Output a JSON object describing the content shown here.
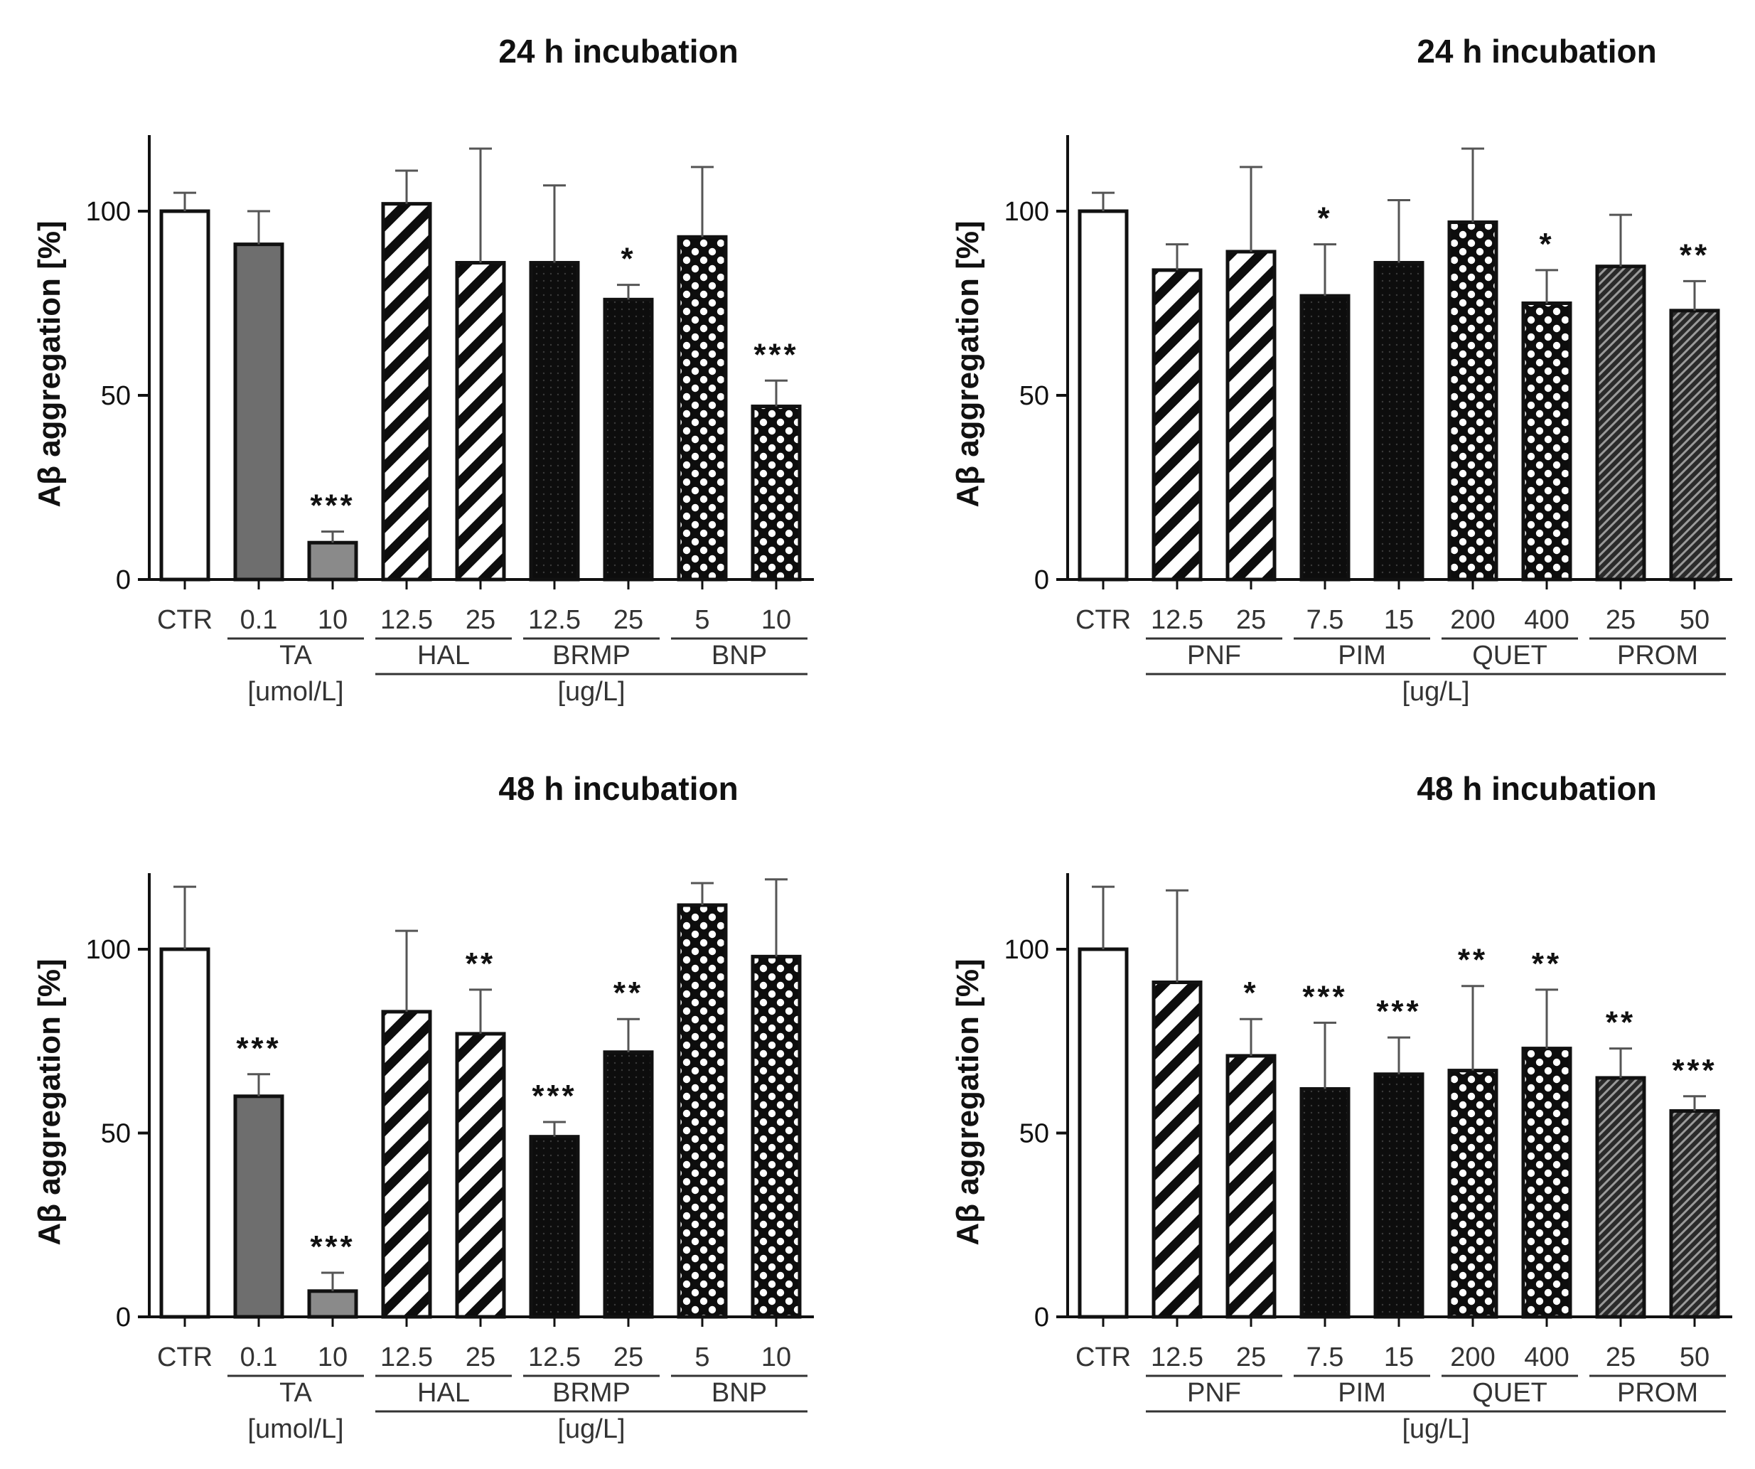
{
  "colors": {
    "ink": "#111111",
    "gray": "#6e6e6e",
    "lightgray": "#8a8a8a",
    "white": "#ffffff",
    "black": "#0d0d0d"
  },
  "chart_data": [
    {
      "id": "tl",
      "type": "bar",
      "title": "24 h incubation",
      "ylabel": "Aβ aggregation [%]",
      "ylim": [
        0,
        120
      ],
      "yticks": [
        0,
        50,
        100
      ],
      "categories": [
        "CTR",
        "0.1",
        "10",
        "12.5",
        "25",
        "12.5",
        "25",
        "5",
        "10"
      ],
      "values": [
        100,
        91,
        10,
        102,
        86,
        86,
        76,
        93,
        47
      ],
      "errors": [
        5,
        9,
        3,
        9,
        31,
        21,
        4,
        19,
        7
      ],
      "significance": [
        "",
        "",
        "***",
        "",
        "",
        "",
        "*",
        "",
        "***"
      ],
      "patterns": [
        "white",
        "gray",
        "lightgray",
        "hatch",
        "hatch",
        "dots",
        "dots",
        "checker",
        "checker"
      ],
      "groups": [
        {
          "label": "TA",
          "from": 1,
          "to": 2,
          "line": true
        },
        {
          "label": "HAL",
          "from": 3,
          "to": 4,
          "line": true
        },
        {
          "label": "BRMP",
          "from": 5,
          "to": 6,
          "line": true
        },
        {
          "label": "BNP",
          "from": 7,
          "to": 8,
          "line": true
        }
      ],
      "units": [
        {
          "label": "[umol/L]",
          "from": 1,
          "to": 2,
          "line": false
        },
        {
          "label": "[ug/L]",
          "from": 3,
          "to": 8,
          "line": true
        }
      ]
    },
    {
      "id": "tr",
      "type": "bar",
      "title": "24 h incubation",
      "ylabel": "Aβ aggregation [%]",
      "ylim": [
        0,
        120
      ],
      "yticks": [
        0,
        50,
        100
      ],
      "categories": [
        "CTR",
        "12.5",
        "25",
        "7.5",
        "15",
        "200",
        "400",
        "25",
        "50"
      ],
      "values": [
        100,
        84,
        89,
        77,
        86,
        97,
        75,
        85,
        73
      ],
      "errors": [
        5,
        7,
        23,
        14,
        17,
        20,
        9,
        14,
        8
      ],
      "significance": [
        "",
        "",
        "",
        "*",
        "",
        "",
        "*",
        "",
        "**"
      ],
      "patterns": [
        "white",
        "hatch",
        "hatch",
        "dots",
        "dots",
        "checker",
        "checker",
        "finehatch",
        "finehatch"
      ],
      "groups": [
        {
          "label": "PNF",
          "from": 1,
          "to": 2,
          "line": true
        },
        {
          "label": "PIM",
          "from": 3,
          "to": 4,
          "line": true
        },
        {
          "label": "QUET",
          "from": 5,
          "to": 6,
          "line": true
        },
        {
          "label": "PROM",
          "from": 7,
          "to": 8,
          "line": true
        }
      ],
      "units": [
        {
          "label": "[ug/L]",
          "from": 1,
          "to": 8,
          "line": true
        }
      ]
    },
    {
      "id": "bl",
      "type": "bar",
      "title": "48 h incubation",
      "ylabel": "Aβ aggregation [%]",
      "ylim": [
        0,
        120
      ],
      "yticks": [
        0,
        50,
        100
      ],
      "categories": [
        "CTR",
        "0.1",
        "10",
        "12.5",
        "25",
        "12.5",
        "25",
        "5",
        "10"
      ],
      "values": [
        100,
        60,
        7,
        83,
        77,
        49,
        72,
        112,
        98
      ],
      "errors": [
        17,
        6,
        5,
        22,
        12,
        4,
        9,
        6,
        21
      ],
      "significance": [
        "",
        "***",
        "***",
        "",
        "**",
        "***",
        "**",
        "",
        ""
      ],
      "patterns": [
        "white",
        "gray",
        "lightgray",
        "hatch",
        "hatch",
        "dots",
        "dots",
        "checker",
        "checker"
      ],
      "groups": [
        {
          "label": "TA",
          "from": 1,
          "to": 2,
          "line": true
        },
        {
          "label": "HAL",
          "from": 3,
          "to": 4,
          "line": true
        },
        {
          "label": "BRMP",
          "from": 5,
          "to": 6,
          "line": true
        },
        {
          "label": "BNP",
          "from": 7,
          "to": 8,
          "line": true
        }
      ],
      "units": [
        {
          "label": "[umol/L]",
          "from": 1,
          "to": 2,
          "line": false
        },
        {
          "label": "[ug/L]",
          "from": 3,
          "to": 8,
          "line": true
        }
      ]
    },
    {
      "id": "br",
      "type": "bar",
      "title": "48 h incubation",
      "ylabel": "Aβ aggregation [%]",
      "ylim": [
        0,
        120
      ],
      "yticks": [
        0,
        50,
        100
      ],
      "categories": [
        "CTR",
        "12.5",
        "25",
        "7.5",
        "15",
        "200",
        "400",
        "25",
        "50"
      ],
      "values": [
        100,
        91,
        71,
        62,
        66,
        67,
        73,
        65,
        56
      ],
      "errors": [
        17,
        25,
        10,
        18,
        10,
        23,
        16,
        8,
        4
      ],
      "significance": [
        "",
        "",
        "*",
        "***",
        "***",
        "**",
        "**",
        "**",
        "***"
      ],
      "patterns": [
        "white",
        "hatch",
        "hatch",
        "dots",
        "dots",
        "checker",
        "checker",
        "finehatch",
        "finehatch"
      ],
      "groups": [
        {
          "label": "PNF",
          "from": 1,
          "to": 2,
          "line": true
        },
        {
          "label": "PIM",
          "from": 3,
          "to": 4,
          "line": true
        },
        {
          "label": "QUET",
          "from": 5,
          "to": 6,
          "line": true
        },
        {
          "label": "PROM",
          "from": 7,
          "to": 8,
          "line": true
        }
      ],
      "units": [
        {
          "label": "[ug/L]",
          "from": 1,
          "to": 8,
          "line": true
        }
      ]
    }
  ]
}
